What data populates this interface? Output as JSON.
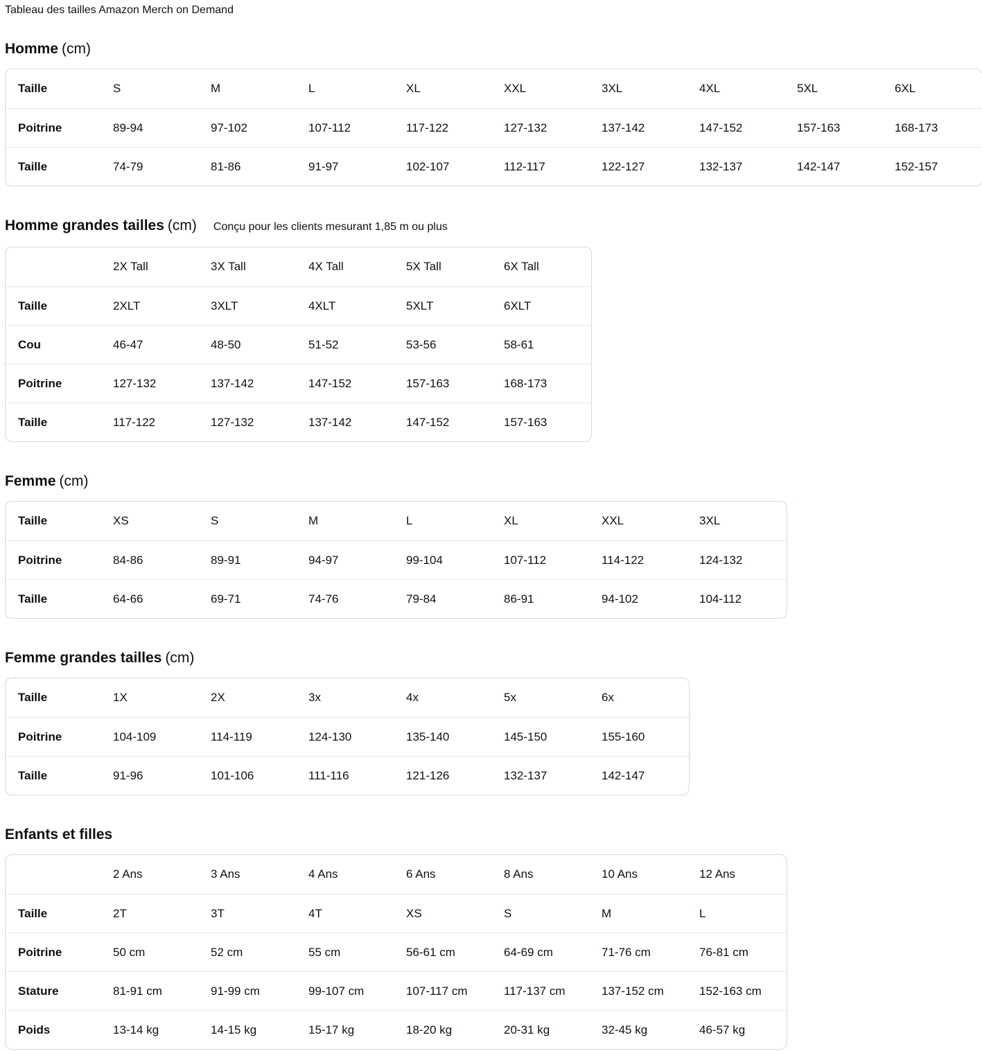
{
  "page_title": "Tableau des tailles Amazon Merch on Demand",
  "colors": {
    "text": "#0f1111",
    "table_outer_border": "#d5d9d9",
    "row_divider": "#e7e7e7",
    "background": "#ffffff"
  },
  "sections": [
    {
      "title": "Homme",
      "unit": "(cm)",
      "subtitle": "",
      "rows": [
        [
          "Taille",
          "S",
          "M",
          "L",
          "XL",
          "XXL",
          "3XL",
          "4XL",
          "5XL",
          "6XL"
        ],
        [
          "Poitrine",
          "89-94",
          "97-102",
          "107-112",
          "117-122",
          "127-132",
          "137-142",
          "147-152",
          "157-163",
          "168-173"
        ],
        [
          "Taille",
          "74-79",
          "81-86",
          "91-97",
          "102-107",
          "112-117",
          "122-127",
          "132-137",
          "142-147",
          "152-157"
        ]
      ]
    },
    {
      "title": "Homme grandes tailles",
      "unit": "(cm)",
      "subtitle": "Conçu pour les clients mesurant 1,85 m ou plus",
      "rows": [
        [
          "",
          "2X Tall",
          "3X Tall",
          "4X Tall",
          "5X Tall",
          "6X Tall"
        ],
        [
          "Taille",
          "2XLT",
          "3XLT",
          "4XLT",
          "5XLT",
          "6XLT"
        ],
        [
          "Cou",
          "46-47",
          "48-50",
          "51-52",
          "53-56",
          "58-61"
        ],
        [
          "Poitrine",
          "127-132",
          "137-142",
          "147-152",
          "157-163",
          "168-173"
        ],
        [
          "Taille",
          "117-122",
          "127-132",
          "137-142",
          "147-152",
          "157-163"
        ]
      ]
    },
    {
      "title": "Femme",
      "unit": "(cm)",
      "subtitle": "",
      "rows": [
        [
          "Taille",
          "XS",
          "S",
          "M",
          "L",
          "XL",
          "XXL",
          "3XL"
        ],
        [
          "Poitrine",
          "84-86",
          "89-91",
          "94-97",
          "99-104",
          "107-112",
          "114-122",
          "124-132"
        ],
        [
          "Taille",
          "64-66",
          "69-71",
          "74-76",
          "79-84",
          "86-91",
          "94-102",
          "104-112"
        ]
      ]
    },
    {
      "title": "Femme grandes tailles",
      "unit": "(cm)",
      "subtitle": "",
      "rows": [
        [
          "Taille",
          "1X",
          "2X",
          "3x",
          "4x",
          "5x",
          "6x"
        ],
        [
          "Poitrine",
          "104-109",
          "114-119",
          "124-130",
          "135-140",
          "145-150",
          "155-160"
        ],
        [
          "Taille",
          "91-96",
          "101-106",
          "111-116",
          "121-126",
          "132-137",
          "142-147"
        ]
      ]
    },
    {
      "title": "Enfants et filles",
      "unit": "",
      "subtitle": "",
      "rows": [
        [
          "",
          "2 Ans",
          "3 Ans",
          "4 Ans",
          "6 Ans",
          "8 Ans",
          "10 Ans",
          "12 Ans"
        ],
        [
          "Taille",
          "2T",
          "3T",
          "4T",
          "XS",
          "S",
          "M",
          "L"
        ],
        [
          "Poitrine",
          "50 cm",
          "52 cm",
          "55 cm",
          "56-61 cm",
          "64-69 cm",
          "71-76 cm",
          "76-81 cm"
        ],
        [
          "Stature",
          "81-91 cm",
          "91-99 cm",
          "99-107 cm",
          "107-117 cm",
          "117-137 cm",
          "137-152 cm",
          "152-163 cm"
        ],
        [
          "Poids",
          "13-14 kg",
          "14-15 kg",
          "15-17 kg",
          "18-20 kg",
          "20-31 kg",
          "32-45 kg",
          "46-57 kg"
        ]
      ]
    }
  ]
}
